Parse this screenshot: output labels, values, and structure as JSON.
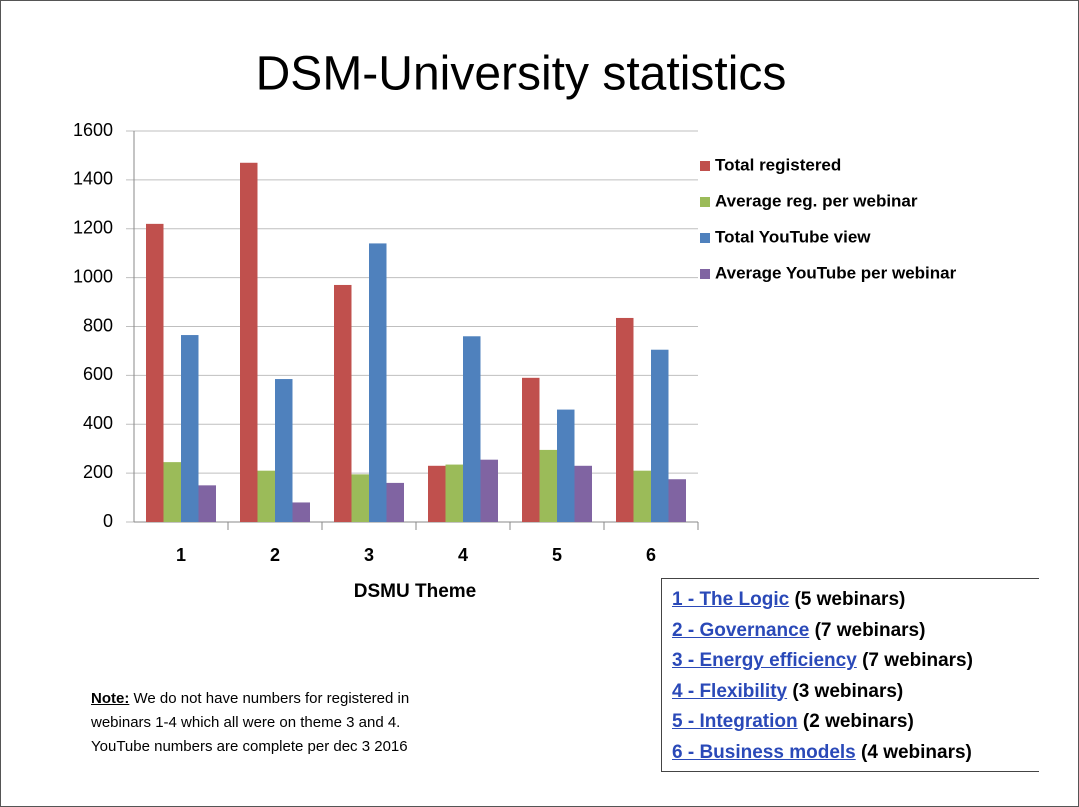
{
  "chart_data": {
    "type": "bar",
    "title": "DSM-University statistics",
    "x_label": "DSMU Theme",
    "categories": [
      "1",
      "2",
      "3",
      "4",
      "5",
      "6"
    ],
    "series": [
      {
        "name": "Total registered",
        "color": "#c0504d",
        "values": [
          1220,
          1470,
          970,
          230,
          590,
          835
        ]
      },
      {
        "name": "Average reg. per webinar",
        "color": "#9bbb59",
        "values": [
          245,
          210,
          195,
          235,
          295,
          210
        ]
      },
      {
        "name": "Total YouTube view",
        "color": "#4f81bd",
        "values": [
          765,
          585,
          1140,
          760,
          460,
          705
        ]
      },
      {
        "name": "Average YouTube per webinar",
        "color": "#8064a2",
        "values": [
          150,
          80,
          160,
          255,
          230,
          175
        ]
      }
    ],
    "ylim": [
      0,
      1600
    ],
    "yticks": [
      0,
      200,
      400,
      600,
      800,
      1000,
      1200,
      1400,
      1600
    ],
    "grid": true,
    "legend": "right"
  },
  "note": {
    "label": "Note:",
    "lines": [
      " We do not have numbers for registered in",
      "webinars 1-4 which all were on theme 3 and 4.",
      "YouTube numbers are complete per dec 3 2016"
    ]
  },
  "themes": [
    {
      "link": "1 - The Logic",
      "count": "(5 webinars)"
    },
    {
      "link": "2 - Governance",
      "count": "(7 webinars)"
    },
    {
      "link": "3 - Energy efficiency",
      "count": "(7 webinars)"
    },
    {
      "link": "4 - Flexibility",
      "count": "(3 webinars)"
    },
    {
      "link": "5 - Integration",
      "count": "(2 webinars)"
    },
    {
      "link": "6 - Business models",
      "count": "(4 webinars)"
    }
  ]
}
